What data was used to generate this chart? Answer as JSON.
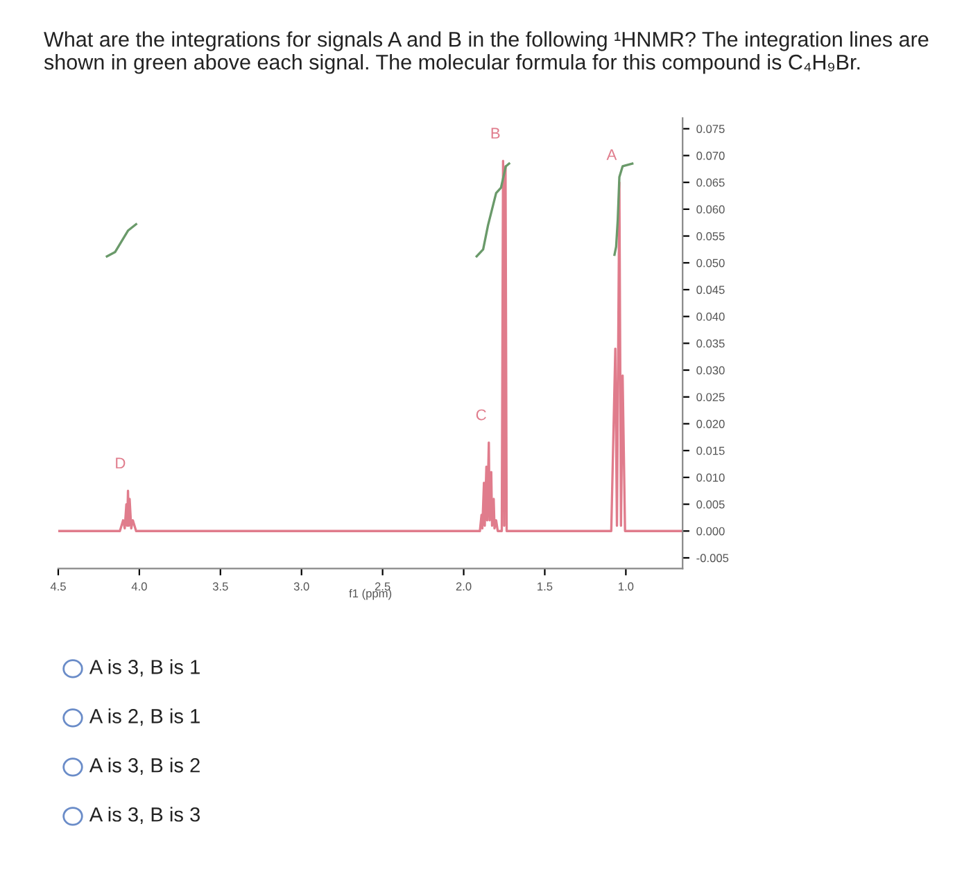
{
  "chart_data": {
    "type": "line",
    "title": "What are the integrations for signals A and B in the following ¹HNMR? The integration lines are shown in green above each signal. The molecular formula for this compound is C₄H₉Br.",
    "xlabel": "f1 (ppm)",
    "xlim": [
      4.5,
      0.65
    ],
    "xticks": [
      4.5,
      {
        "value": 4.0,
        "label": "4.0"
      },
      3.5,
      {
        "value": 3.0,
        "label": "3.0"
      },
      2.5,
      {
        "value": 2.0,
        "label": "2.0"
      },
      1.5,
      {
        "value": 1.0,
        "label": "1.0"
      }
    ],
    "ylim": [
      -0.007,
      0.077
    ],
    "yticks": [
      {
        "value": -0.005,
        "label": "-0.005"
      },
      {
        "value": 0,
        "label": "0.000"
      },
      {
        "value": 0.005,
        "label": "0.005"
      },
      {
        "value": 0.01,
        "label": "0.010"
      },
      {
        "value": 0.015,
        "label": "0.015"
      },
      {
        "value": 0.02,
        "label": "0.020"
      },
      {
        "value": 0.025,
        "label": "0.025"
      },
      {
        "value": 0.03,
        "label": "0.030"
      },
      {
        "value": 0.035,
        "label": "0.035"
      },
      {
        "value": 0.04,
        "label": "0.040"
      },
      {
        "value": 0.045,
        "label": "0.045"
      },
      {
        "value": 0.05,
        "label": "0.050"
      },
      {
        "value": 0.055,
        "label": "0.055"
      },
      {
        "value": 0.06,
        "label": "0.060"
      },
      {
        "value": 0.065,
        "label": "0.065"
      },
      {
        "value": 0.07,
        "label": "0.070"
      },
      {
        "value": 0.075,
        "label": "0.075"
      }
    ],
    "grid": false,
    "marker": "none",
    "line_style": "solid",
    "series": [
      {
        "color": "#e07c8c",
        "x": [
          4.5,
          4.12,
          4.1,
          4.09,
          4.08,
          4.075,
          4.07,
          4.065,
          4.06,
          4.05,
          4.04,
          4.02,
          1.9,
          1.89,
          1.885,
          1.875,
          1.87,
          1.86,
          1.855,
          1.845,
          1.84,
          1.83,
          1.825,
          1.815,
          1.81,
          1.8,
          1.79,
          1.765,
          1.757,
          1.75,
          1.742,
          1.735,
          1.09,
          1.065,
          1.055,
          1.04,
          1.03,
          1.02,
          1.005,
          0.65
        ],
        "values": [
          0,
          0,
          0.002,
          0.0005,
          0.005,
          0.001,
          0.0075,
          0.001,
          0.006,
          0.0005,
          0.002,
          0,
          0,
          0.003,
          0.0005,
          0.009,
          0.001,
          0.012,
          0.002,
          0.0165,
          0.002,
          0.011,
          0.001,
          0.006,
          0.0005,
          0.002,
          0,
          0,
          0.069,
          0.001,
          0.068,
          0,
          0,
          0.034,
          0.001,
          0.065,
          0.001,
          0.029,
          0,
          0
        ]
      },
      {
        "color": "#6a9a6a",
        "x": [
          4.2,
          4.15,
          4.11,
          4.07,
          4.02
        ],
        "values": [
          0.0512,
          0.052,
          0.054,
          0.056,
          0.0572
        ]
      },
      {
        "color": "#6a9a6a",
        "x": [
          1.92,
          1.88,
          1.85,
          1.8,
          1.77,
          1.755,
          1.74,
          1.72
        ],
        "values": [
          0.0512,
          0.0525,
          0.057,
          0.063,
          0.064,
          0.066,
          0.068,
          0.0685
        ]
      },
      {
        "color": "#6a9a6a",
        "x": [
          1.07,
          1.06,
          1.05,
          1.04,
          1.02,
          0.96
        ],
        "values": [
          0.0515,
          0.053,
          0.058,
          0.066,
          0.068,
          0.0685
        ]
      }
    ],
    "annotations": [
      {
        "text": "D",
        "x": 4.07,
        "y": 0.0075
      },
      {
        "text": "C",
        "x": 1.845,
        "y": 0.0165
      },
      {
        "text": "B",
        "x": 1.757,
        "y": 0.069
      },
      {
        "text": "A",
        "x": 1.04,
        "y": 0.065
      },
      "A is 3, B is 1",
      "A is 2, B is 1",
      "A is 3, B is 2",
      "A is 3, B is 3"
    ]
  }
}
